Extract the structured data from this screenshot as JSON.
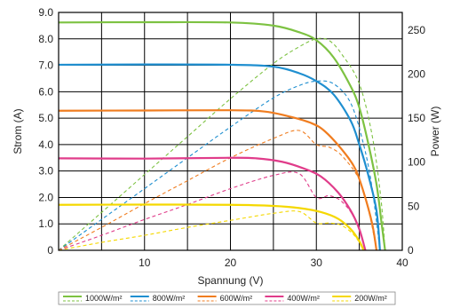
{
  "chart_data": {
    "type": "line",
    "xlabel": "Spannung (V)",
    "ylabel_left": "Strom (A)",
    "ylabel_right": "Power (W)",
    "xlim": [
      0,
      40
    ],
    "ylim_left": [
      0,
      9
    ],
    "ylim_right": [
      0,
      270
    ],
    "x_ticks": [
      10,
      20,
      30,
      40
    ],
    "y_left_ticks": [
      "0",
      "1.0",
      "2.0",
      "3.0",
      "4.0",
      "5.0",
      "6.0",
      "7.0",
      "8.0",
      "9.0"
    ],
    "y_right_ticks": [
      "0",
      "50",
      "100",
      "150",
      "200",
      "250"
    ],
    "grid": true,
    "legend_position": "bottom",
    "series": [
      {
        "name": "1000W/m²",
        "color": "#7dc242",
        "current": [
          [
            0,
            8.62
          ],
          [
            10,
            8.63
          ],
          [
            20,
            8.62
          ],
          [
            25,
            8.5
          ],
          [
            28,
            8.25
          ],
          [
            30,
            7.95
          ],
          [
            32,
            7.3
          ],
          [
            34,
            6.2
          ],
          [
            35,
            5.4
          ],
          [
            36,
            4.1
          ],
          [
            37,
            2.5
          ],
          [
            37.6,
            1.0
          ],
          [
            38,
            0
          ]
        ],
        "power": [
          [
            0,
            0
          ],
          [
            5,
            43
          ],
          [
            10,
            86
          ],
          [
            15,
            129
          ],
          [
            20,
            172
          ],
          [
            25,
            212
          ],
          [
            28,
            231
          ],
          [
            30,
            240
          ],
          [
            31.5,
            238
          ],
          [
            33,
            222
          ],
          [
            35,
            189
          ],
          [
            36.5,
            130
          ],
          [
            37.5,
            60
          ],
          [
            38,
            0
          ]
        ]
      },
      {
        "name": "800W/m²",
        "color": "#1f8fd0",
        "current": [
          [
            0,
            7.02
          ],
          [
            10,
            7.03
          ],
          [
            20,
            7.02
          ],
          [
            25,
            6.95
          ],
          [
            28,
            6.7
          ],
          [
            30,
            6.4
          ],
          [
            32,
            5.9
          ],
          [
            34,
            4.9
          ],
          [
            35,
            4.0
          ],
          [
            36,
            2.9
          ],
          [
            37,
            1.5
          ],
          [
            37.4,
            0
          ]
        ],
        "power": [
          [
            0,
            0
          ],
          [
            5,
            35
          ],
          [
            10,
            70
          ],
          [
            15,
            105
          ],
          [
            20,
            140
          ],
          [
            25,
            173
          ],
          [
            28,
            187
          ],
          [
            30,
            192
          ],
          [
            32,
            189
          ],
          [
            34,
            167
          ],
          [
            35.5,
            120
          ],
          [
            36.5,
            70
          ],
          [
            37.4,
            0
          ]
        ]
      },
      {
        "name": "600W/m²",
        "color": "#f07d20",
        "current": [
          [
            0,
            5.28
          ],
          [
            10,
            5.29
          ],
          [
            20,
            5.3
          ],
          [
            24,
            5.25
          ],
          [
            27,
            5.05
          ],
          [
            29.5,
            4.8
          ],
          [
            31,
            4.5
          ],
          [
            33,
            3.8
          ],
          [
            34.5,
            3.1
          ],
          [
            35.5,
            2.2
          ],
          [
            36.5,
            1.0
          ],
          [
            37,
            0
          ]
        ],
        "power": [
          [
            0,
            0
          ],
          [
            5,
            26
          ],
          [
            10,
            53
          ],
          [
            15,
            79
          ],
          [
            20,
            105
          ],
          [
            25,
            127
          ],
          [
            28,
            136
          ],
          [
            30,
            120
          ],
          [
            31.5,
            117
          ],
          [
            33,
            107
          ],
          [
            35,
            80
          ],
          [
            36.2,
            40
          ],
          [
            37,
            0
          ]
        ]
      },
      {
        "name": "400W/m²",
        "color": "#e03c8a",
        "current": [
          [
            0,
            3.48
          ],
          [
            10,
            3.47
          ],
          [
            20,
            3.5
          ],
          [
            23,
            3.48
          ],
          [
            26,
            3.35
          ],
          [
            28.5,
            3.1
          ],
          [
            30.5,
            2.8
          ],
          [
            32.5,
            2.2
          ],
          [
            34,
            1.5
          ],
          [
            35,
            0.8
          ],
          [
            35.7,
            0
          ]
        ],
        "power": [
          [
            0,
            0
          ],
          [
            5,
            17
          ],
          [
            10,
            35
          ],
          [
            15,
            52
          ],
          [
            20,
            70
          ],
          [
            25,
            85
          ],
          [
            28,
            87
          ],
          [
            30,
            60
          ],
          [
            31.5,
            62
          ],
          [
            33,
            55
          ],
          [
            34.5,
            35
          ],
          [
            35.7,
            0
          ]
        ]
      },
      {
        "name": "200W/m²",
        "color": "#f5d800",
        "current": [
          [
            0,
            1.72
          ],
          [
            10,
            1.73
          ],
          [
            20,
            1.72
          ],
          [
            25,
            1.68
          ],
          [
            28,
            1.6
          ],
          [
            30.5,
            1.45
          ],
          [
            32.5,
            1.2
          ],
          [
            34,
            0.8
          ],
          [
            35,
            0.35
          ],
          [
            35.5,
            0
          ]
        ],
        "power": [
          [
            0,
            0
          ],
          [
            5,
            9
          ],
          [
            10,
            17
          ],
          [
            15,
            26
          ],
          [
            20,
            34
          ],
          [
            25,
            42
          ],
          [
            28,
            44
          ],
          [
            30,
            31
          ],
          [
            31.5,
            31
          ],
          [
            33,
            28
          ],
          [
            34.5,
            16
          ],
          [
            35.5,
            0
          ]
        ]
      }
    ]
  }
}
